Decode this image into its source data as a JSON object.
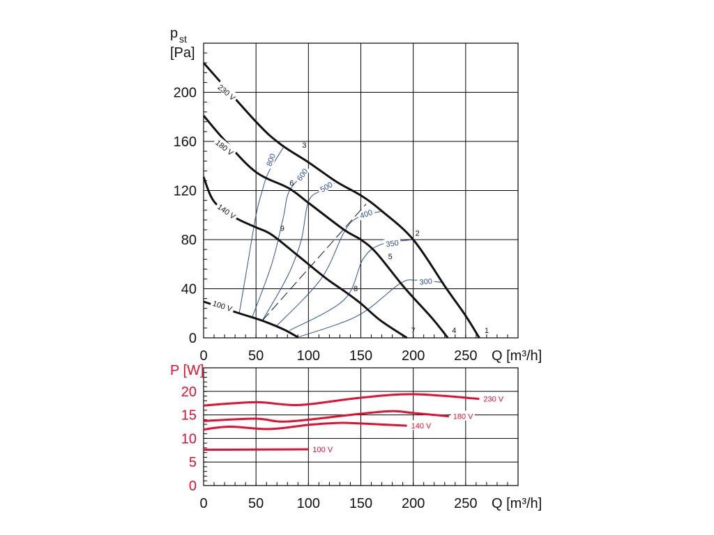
{
  "chart_data": [
    {
      "type": "line",
      "title": "Static pressure vs. air flow",
      "ylabel_main": "p",
      "ylabel_sub": "st",
      "yunit": "[Pa]",
      "xlabel": "Q [m³/h]",
      "xlim": [
        0,
        300
      ],
      "ylim": [
        0,
        240
      ],
      "xticks": [
        0,
        50,
        100,
        150,
        200,
        250
      ],
      "yticks": [
        0,
        40,
        80,
        120,
        160,
        200
      ],
      "grid": true,
      "series": [
        {
          "name": "230 V",
          "points": [
            [
              0,
              224
            ],
            [
              50,
              176
            ],
            [
              73,
              158
            ],
            [
              100,
              143
            ],
            [
              127,
              127
            ],
            [
              150,
              116
            ],
            [
              169,
              104
            ],
            [
              200,
              80
            ],
            [
              231,
              41
            ],
            [
              250,
              18
            ],
            [
              263,
              0
            ]
          ]
        },
        {
          "name": "180 V",
          "points": [
            [
              0,
              181
            ],
            [
              21,
              160
            ],
            [
              50,
              135
            ],
            [
              81,
              122
            ],
            [
              100,
              110
            ],
            [
              134,
              88
            ],
            [
              150,
              80
            ],
            [
              165,
              69
            ],
            [
              191.5,
              41
            ],
            [
              218,
              16
            ],
            [
              233,
              0
            ]
          ]
        },
        {
          "name": "140 V",
          "points": [
            [
              0,
              131
            ],
            [
              10,
              111
            ],
            [
              30,
              98
            ],
            [
              50,
              90
            ],
            [
              65,
              84
            ],
            [
              90,
              67
            ],
            [
              116,
              49
            ],
            [
              136,
              37
            ],
            [
              150,
              28
            ],
            [
              169,
              14
            ],
            [
              194,
              0
            ]
          ]
        },
        {
          "name": "100 V",
          "points": [
            [
              0,
              29.5
            ],
            [
              34,
              20
            ],
            [
              56,
              14
            ],
            [
              76,
              7
            ],
            [
              90,
              0.5
            ]
          ]
        }
      ],
      "series_label_pos": [
        [
          22,
          200
        ],
        [
          20,
          155
        ],
        [
          22,
          103
        ],
        [
          18,
          26
        ]
      ],
      "iso_curves": [
        {
          "name": "800",
          "points": [
            [
              34,
              20
            ],
            [
              42,
              60
            ],
            [
              50,
              100
            ],
            [
              56,
              120
            ],
            [
              62,
              135
            ],
            [
              76,
              155
            ]
          ],
          "label_pos": [
            64,
            145
          ]
        },
        {
          "name": "600",
          "points": [
            [
              46,
              16
            ],
            [
              65,
              60
            ],
            [
              76,
              98
            ],
            [
              82,
              120
            ],
            [
              100,
              137
            ]
          ],
          "label_pos": [
            94,
            133
          ]
        },
        {
          "name": "500",
          "points": [
            [
              56,
              14
            ],
            [
              80,
              50
            ],
            [
              93,
              79
            ],
            [
              100,
              111
            ],
            [
              112,
              120
            ],
            [
              125,
              126
            ]
          ],
          "label_pos": [
            117,
            123
          ]
        },
        {
          "name": "400",
          "points": [
            [
              70,
              10
            ],
            [
              112,
              48
            ],
            [
              134,
              86
            ],
            [
              147,
              98
            ],
            [
              169,
              103
            ]
          ],
          "label_pos": [
            155,
            101
          ]
        },
        {
          "name": "350",
          "points": [
            [
              82,
              6
            ],
            [
              134,
              31
            ],
            [
              152,
              64
            ],
            [
              169,
              76
            ],
            [
              200,
              80
            ]
          ],
          "label_pos": [
            180,
            77
          ]
        },
        {
          "name": "300",
          "points": [
            [
              90,
              0.5
            ],
            [
              147,
              18
            ],
            [
              187,
              44
            ],
            [
              203,
              47
            ],
            [
              229,
              45
            ]
          ],
          "label_pos": [
            212,
            46
          ]
        }
      ],
      "dashed_line": [
        [
          56,
          14
        ],
        [
          155,
          109
        ]
      ],
      "point_labels": [
        {
          "text": "1",
          "pos": [
            268,
            4
          ]
        },
        {
          "text": "2",
          "pos": [
            202,
            83
          ]
        },
        {
          "text": "3",
          "pos": [
            94,
            155
          ]
        },
        {
          "text": "4",
          "pos": [
            237,
            4
          ]
        },
        {
          "text": "5",
          "pos": [
            176,
            64
          ]
        },
        {
          "text": "6",
          "pos": [
            82,
            124
          ]
        },
        {
          "text": "7",
          "pos": [
            198,
            4
          ]
        },
        {
          "text": "8",
          "pos": [
            143,
            38
          ]
        },
        {
          "text": "9",
          "pos": [
            73,
            87
          ]
        }
      ]
    },
    {
      "type": "line",
      "ylabel": "P [W]",
      "xlabel": "Q [m³/h]",
      "xlim": [
        0,
        300
      ],
      "ylim": [
        0,
        25
      ],
      "xticks": [
        0,
        50,
        100,
        150,
        200,
        250
      ],
      "yticks": [
        0,
        5,
        10,
        15,
        20
      ],
      "grid": true,
      "series": [
        {
          "name": "230 V",
          "points": [
            [
              0,
              17.0
            ],
            [
              50,
              17.7
            ],
            [
              91,
              17.1
            ],
            [
              148,
              18.6
            ],
            [
              200,
              19.4
            ],
            [
              263,
              18.4
            ]
          ]
        },
        {
          "name": "180 V",
          "points": [
            [
              0,
              13.7
            ],
            [
              50,
              14.2
            ],
            [
              80,
              13.6
            ],
            [
              148,
              15.2
            ],
            [
              179,
              15.8
            ],
            [
              200,
              15.4
            ],
            [
              234,
              14.7
            ]
          ]
        },
        {
          "name": "140 V",
          "points": [
            [
              0,
              11.9
            ],
            [
              25,
              12.5
            ],
            [
              63,
              12.0
            ],
            [
              101,
              12.9
            ],
            [
              129,
              13.3
            ],
            [
              148,
              13.2
            ],
            [
              194,
              12.7
            ]
          ]
        },
        {
          "name": "100 V",
          "points": [
            [
              0,
              7.6
            ],
            [
              100,
              7.7
            ]
          ]
        }
      ]
    }
  ],
  "colors": {
    "curve": "#111111",
    "iso": "#2a4f9c",
    "power": "#e0102f",
    "grid": "#000000"
  }
}
